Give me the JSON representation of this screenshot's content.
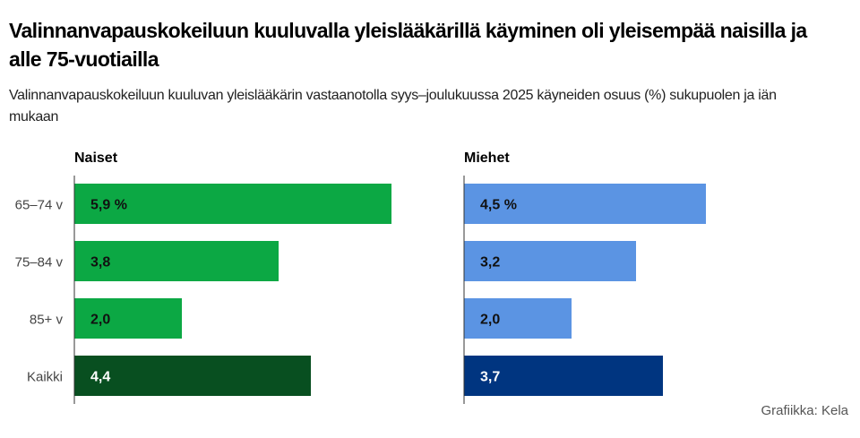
{
  "title": "Valinnanvapauskokeiluun kuuluvalla yleislääkärillä käyminen oli yleisempää naisilla ja alle 75-vuotiailla",
  "subtitle": "Valinnanvapauskokeiluun kuuluvan yleislääkärin vastaanotolla syys–joulukuussa 2025 käyneiden osuus (%) sukupuolen ja iän mukaan",
  "credit": "Grafiikka: Kela",
  "chart_data": {
    "type": "bar",
    "orientation": "horizontal",
    "categories": [
      "65–74 v",
      "75–84 v",
      "85+ v",
      "Kaikki"
    ],
    "unit": "%",
    "panels": [
      {
        "name": "Naiset",
        "values": [
          5.9,
          3.8,
          2.0,
          4.4
        ],
        "labels": [
          "5,9 %",
          "3,8",
          "2,0",
          "4,4"
        ],
        "color": "#0ca844",
        "total_color": "#084f20"
      },
      {
        "name": "Miehet",
        "values": [
          4.5,
          3.2,
          2.0,
          3.7
        ],
        "labels": [
          "4,5 %",
          "3,2",
          "2,0",
          "3,7"
        ],
        "color": "#5b94e3",
        "total_color": "#003580"
      }
    ]
  }
}
